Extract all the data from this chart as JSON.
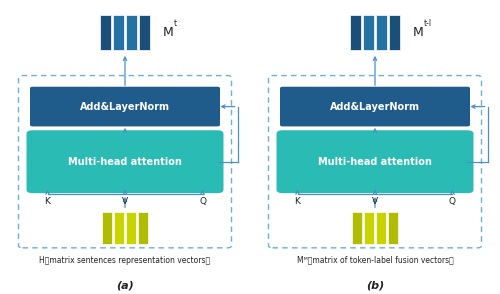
{
  "fig_width": 5.0,
  "fig_height": 2.94,
  "dpi": 100,
  "background_color": "#ffffff",
  "panels": [
    {
      "id": "a",
      "label": "(a)",
      "caption_line1": "H（matrix sentences representation vectors）",
      "output_superscript": "t",
      "input_color": "#c8d400",
      "input_color_alt": "#b0bc00"
    },
    {
      "id": "b",
      "label": "(b)",
      "caption_line1": "Mᴹ（matrix of token‐label fusion vectors）",
      "output_superscript": "t-l",
      "input_color": "#c8d400",
      "input_color_alt": "#b0bc00"
    }
  ],
  "add_layer_color": "#1f5c8b",
  "mha_color": "#2abcb4",
  "arrow_color": "#4a90c4",
  "dashed_color": "#6ab0d8",
  "output_bar_dark": "#1a4f7a",
  "output_bar_mid": "#2471a3",
  "text_color_white": "#ffffff",
  "text_color_black": "#222222"
}
